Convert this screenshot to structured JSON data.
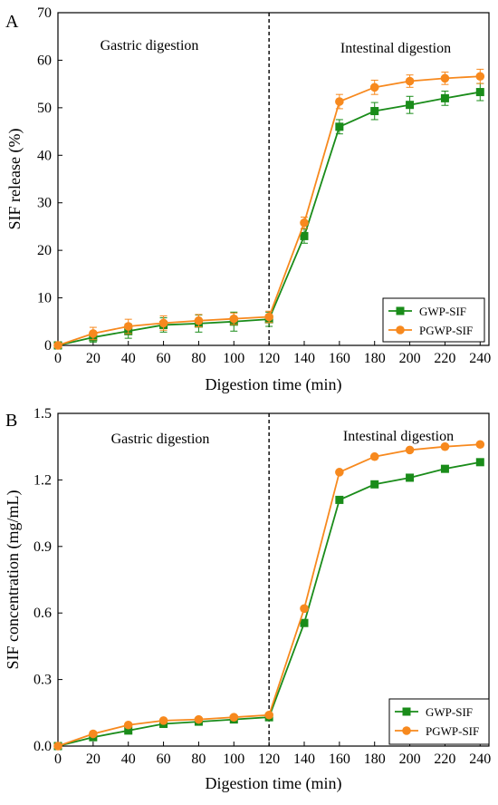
{
  "chart_data": [
    {
      "panel_label": "A",
      "type": "line",
      "xlabel": "Digestion time (min)",
      "ylabel": "SIF release (%)",
      "xlim": [
        0,
        245
      ],
      "ylim": [
        0,
        70
      ],
      "xticks": [
        0,
        20,
        40,
        60,
        80,
        100,
        120,
        140,
        160,
        180,
        200,
        220,
        240
      ],
      "yticks": [
        0,
        10,
        20,
        30,
        40,
        50,
        60,
        70
      ],
      "divider_x": 120,
      "annotations": [
        "Gastric digestion",
        "Intestinal digestion"
      ],
      "legend_position": "bottom-right",
      "grid": false,
      "x": [
        0,
        20,
        40,
        60,
        80,
        100,
        120,
        140,
        160,
        180,
        200,
        220,
        240
      ],
      "series": [
        {
          "name": "GWP-SIF",
          "color": "#1a8c1a",
          "marker": "square",
          "values": [
            0,
            1.7,
            3.0,
            4.3,
            4.6,
            5.0,
            5.5,
            23.0,
            46.0,
            49.3,
            50.6,
            52.0,
            53.3
          ],
          "errors": [
            0,
            1.0,
            1.5,
            1.5,
            1.8,
            2.0,
            1.5,
            1.5,
            1.5,
            1.8,
            1.8,
            1.5,
            1.8
          ]
        },
        {
          "name": "PGWP-SIF",
          "color": "#f7891e",
          "marker": "circle",
          "values": [
            0,
            2.5,
            4.0,
            4.7,
            5.2,
            5.6,
            6.0,
            25.8,
            51.3,
            54.3,
            55.6,
            56.2,
            56.6
          ],
          "errors": [
            0,
            1.3,
            1.5,
            1.5,
            1.3,
            1.2,
            1.2,
            1.2,
            1.5,
            1.5,
            1.3,
            1.3,
            1.5
          ]
        }
      ]
    },
    {
      "panel_label": "B",
      "type": "line",
      "xlabel": "Digestion time (min)",
      "ylabel": "SIF concentration (mg/mL)",
      "xlim": [
        0,
        245
      ],
      "ylim": [
        0,
        1.5
      ],
      "xticks": [
        0,
        20,
        40,
        60,
        80,
        100,
        120,
        140,
        160,
        180,
        200,
        220,
        240
      ],
      "yticks": [
        "0.0",
        "0.3",
        "0.6",
        "0.9",
        "1.2",
        "1.5"
      ],
      "divider_x": 120,
      "annotations": [
        "Gastric digestion",
        "Intestinal digestion"
      ],
      "legend_position": "bottom-right",
      "grid": false,
      "x": [
        0,
        20,
        40,
        60,
        80,
        100,
        120,
        140,
        160,
        180,
        200,
        220,
        240
      ],
      "series": [
        {
          "name": "GWP-SIF",
          "color": "#1a8c1a",
          "marker": "square",
          "values": [
            0,
            0.04,
            0.07,
            0.1,
            0.11,
            0.12,
            0.13,
            0.555,
            1.11,
            1.18,
            1.21,
            1.25,
            1.28
          ]
        },
        {
          "name": "PGWP-SIF",
          "color": "#f7891e",
          "marker": "circle",
          "values": [
            0,
            0.055,
            0.095,
            0.115,
            0.12,
            0.13,
            0.14,
            0.62,
            1.235,
            1.305,
            1.335,
            1.35,
            1.36
          ]
        }
      ]
    }
  ]
}
